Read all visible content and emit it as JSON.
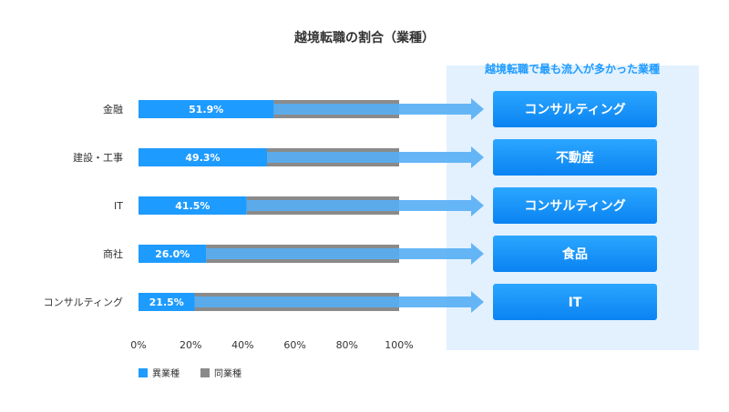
{
  "colors": {
    "accent": "#1E9BFF",
    "other_industry": "#1E9BFF",
    "same_industry": "#8A8A8A",
    "panel_bg": "#E3F1FF",
    "arrow": "#55AEF5",
    "box_gradient_top": "#2BA6FF",
    "box_gradient_bottom": "#0A83F2",
    "text": "#333333",
    "panel_title": "#1E9BFF"
  },
  "panel": {
    "title": "越境転職で最も流入が多かった業種",
    "destinations": [
      "コンサルティング",
      "不動産",
      "コンサルティング",
      "食品",
      "IT"
    ]
  },
  "chart_data": {
    "type": "bar",
    "orientation": "horizontal",
    "stacked": true,
    "title": "越境転職の割合（業種）",
    "categories": [
      "金融",
      "建設・工事",
      "IT",
      "商社",
      "コンサルティング"
    ],
    "series": [
      {
        "name": "異業種",
        "values": [
          51.9,
          49.3,
          41.5,
          26.0,
          21.5
        ],
        "labels": [
          "51.9%",
          "49.3%",
          "41.5%",
          "26.0%",
          "21.5%"
        ]
      },
      {
        "name": "同業種",
        "values": [
          48.1,
          50.7,
          58.5,
          74.0,
          78.5
        ]
      }
    ],
    "xlim": [
      0,
      100
    ],
    "x_ticks": [
      "0%",
      "20%",
      "40%",
      "60%",
      "80%",
      "100%"
    ],
    "legend_position": "bottom-left",
    "grid": false
  }
}
